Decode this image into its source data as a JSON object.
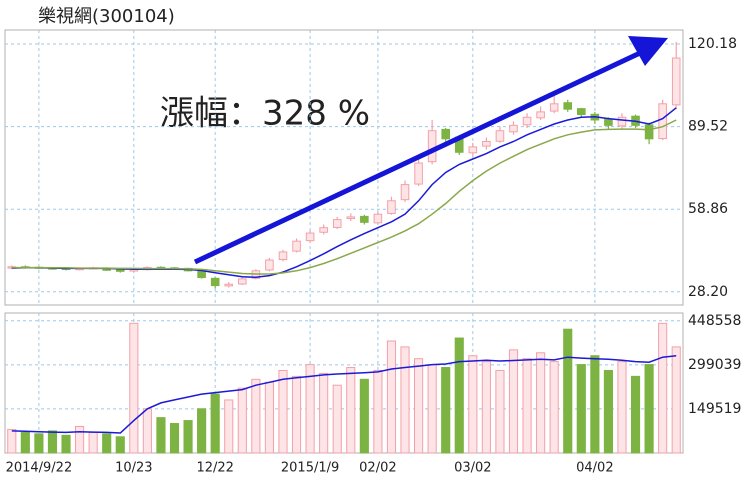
{
  "chart_data": [
    {
      "type": "candlestick",
      "title": "樂視網(300104)",
      "annotation": "漲幅：328 %",
      "categories": [
        null,
        null,
        "2014/9/22",
        null,
        null,
        null,
        null,
        null,
        null,
        "10/23",
        null,
        null,
        null,
        null,
        null,
        "12/22",
        null,
        null,
        null,
        null,
        null,
        null,
        "2015/1/9",
        null,
        null,
        null,
        null,
        "02/02",
        null,
        null,
        null,
        null,
        null,
        null,
        "03/02",
        null,
        null,
        null,
        null,
        null,
        null,
        null,
        null,
        "04/02",
        null,
        null,
        null,
        null,
        null,
        null
      ],
      "open": [
        37.0,
        37.5,
        37.3,
        37.0,
        36.9,
        36.4,
        36.8,
        37.0,
        36.3,
        35.9,
        36.4,
        37.3,
        37.1,
        36.9,
        36.0,
        33.2,
        30.4,
        31.1,
        33.2,
        36.3,
        40.2,
        43.3,
        47.2,
        50.3,
        52.1,
        55.4,
        56.2,
        53.8,
        57.3,
        62.4,
        68.2,
        76.5,
        88.5,
        85.6,
        79.8,
        82.3,
        84.1,
        87.6,
        90.2,
        92.8,
        95.3,
        98.4,
        96.2,
        94.1,
        92.3,
        89.8,
        93.4,
        90.2,
        85.1,
        97.6
      ],
      "high": [
        38.0,
        38.0,
        37.6,
        37.3,
        37.1,
        37.2,
        37.5,
        37.3,
        36.6,
        36.8,
        37.6,
        37.7,
        37.4,
        37.1,
        36.2,
        33.6,
        31.8,
        33.5,
        36.6,
        40.8,
        43.8,
        48.0,
        51.0,
        53.2,
        56.0,
        57.3,
        56.8,
        58.0,
        63.5,
        69.5,
        78.0,
        92.0,
        89.0,
        86.0,
        83.5,
        85.5,
        89.5,
        91.5,
        94.5,
        97.0,
        101.0,
        99.5,
        96.5,
        95.0,
        93.0,
        94.5,
        94.0,
        91.0,
        99.5,
        121.0
      ],
      "low": [
        36.6,
        36.8,
        36.6,
        36.4,
        36.1,
        36.1,
        36.5,
        36.0,
        35.3,
        35.5,
        36.1,
        36.6,
        36.4,
        35.7,
        33.1,
        29.5,
        29.8,
        30.7,
        32.8,
        35.8,
        39.5,
        42.8,
        46.5,
        49.5,
        51.5,
        54.5,
        53.2,
        53.3,
        56.8,
        61.5,
        67.5,
        75.5,
        83.5,
        79.0,
        78.5,
        81.0,
        83.5,
        86.5,
        89.0,
        92.0,
        94.5,
        95.0,
        93.0,
        90.5,
        88.5,
        88.5,
        89.0,
        83.0,
        84.5,
        96.0
      ],
      "close": [
        37.5,
        37.2,
        37.0,
        36.8,
        36.5,
        36.9,
        37.1,
        36.2,
        35.8,
        36.5,
        37.2,
        37.0,
        36.8,
        36.0,
        33.5,
        30.5,
        31.0,
        33.0,
        36.0,
        40.0,
        43.0,
        47.0,
        50.0,
        52.0,
        55.0,
        56.0,
        54.0,
        57.0,
        62.0,
        68.0,
        76.0,
        88.0,
        85.0,
        80.0,
        82.0,
        84.0,
        88.0,
        90.0,
        93.0,
        95.0,
        98.0,
        96.0,
        94.0,
        92.0,
        90.0,
        93.0,
        90.0,
        85.0,
        98.0,
        115.0
      ],
      "up_color": "#f4a0a8",
      "down_color": "#7cb342",
      "lines": [
        {
          "color": "#1a1ad8",
          "values": [
            37.0,
            37.1,
            37.1,
            37.0,
            36.9,
            36.9,
            36.9,
            36.9,
            36.7,
            36.6,
            36.6,
            36.6,
            36.6,
            36.5,
            36.1,
            35.3,
            34.5,
            33.8,
            33.6,
            34.2,
            35.5,
            37.5,
            39.8,
            42.3,
            45.0,
            47.5,
            49.8,
            52.0,
            54.2,
            57.0,
            62.0,
            68.0,
            72.5,
            75.5,
            77.5,
            79.5,
            82.0,
            84.0,
            86.5,
            88.5,
            90.5,
            92.0,
            93.0,
            93.2,
            92.5,
            92.0,
            91.5,
            90.5,
            92.5,
            96.5
          ]
        },
        {
          "color": "#8aa84a",
          "values": [
            37.2,
            37.2,
            37.2,
            37.1,
            37.1,
            37.0,
            37.0,
            37.0,
            36.9,
            36.9,
            36.8,
            36.8,
            36.8,
            36.7,
            36.5,
            36.0,
            35.5,
            35.0,
            34.8,
            34.8,
            35.2,
            36.0,
            37.2,
            38.7,
            40.5,
            42.5,
            44.5,
            46.5,
            48.5,
            50.8,
            53.5,
            57.0,
            61.0,
            65.5,
            69.5,
            73.0,
            76.0,
            78.5,
            81.0,
            83.0,
            85.0,
            86.5,
            87.5,
            88.3,
            88.5,
            88.6,
            88.6,
            88.4,
            89.5,
            92.0
          ]
        }
      ],
      "ylim": [
        23.3,
        125.4
      ],
      "yticks": [
        {
          "value": 28.2,
          "label": "28.20"
        },
        58.86,
        89.52,
        120.18
      ],
      "grid": true
    },
    {
      "type": "bar",
      "values": [
        80000,
        70000,
        65000,
        75000,
        60000,
        90000,
        70000,
        65000,
        55000,
        440000,
        150000,
        120000,
        100000,
        110000,
        150000,
        200000,
        180000,
        220000,
        250000,
        240000,
        280000,
        260000,
        300000,
        270000,
        230000,
        290000,
        250000,
        280000,
        380000,
        360000,
        320000,
        300000,
        290000,
        390000,
        330000,
        310000,
        280000,
        350000,
        320000,
        340000,
        310000,
        420000,
        300000,
        330000,
        280000,
        310000,
        260000,
        300000,
        440000,
        360000
      ],
      "line": {
        "color": "#1a1ad8",
        "values": [
          75000,
          74000,
          72000,
          71000,
          70000,
          72000,
          71000,
          70000,
          68000,
          110000,
          150000,
          170000,
          180000,
          190000,
          200000,
          205000,
          210000,
          215000,
          230000,
          240000,
          250000,
          255000,
          260000,
          265000,
          268000,
          270000,
          272000,
          275000,
          285000,
          290000,
          295000,
          300000,
          302000,
          310000,
          312000,
          315000,
          312000,
          314000,
          316000,
          318000,
          316000,
          325000,
          322000,
          320000,
          318000,
          315000,
          310000,
          308000,
          325000,
          330000
        ]
      },
      "ylim": [
        0,
        475000
      ],
      "yticks": [
        149519,
        299039,
        448558
      ],
      "grid": true
    }
  ]
}
